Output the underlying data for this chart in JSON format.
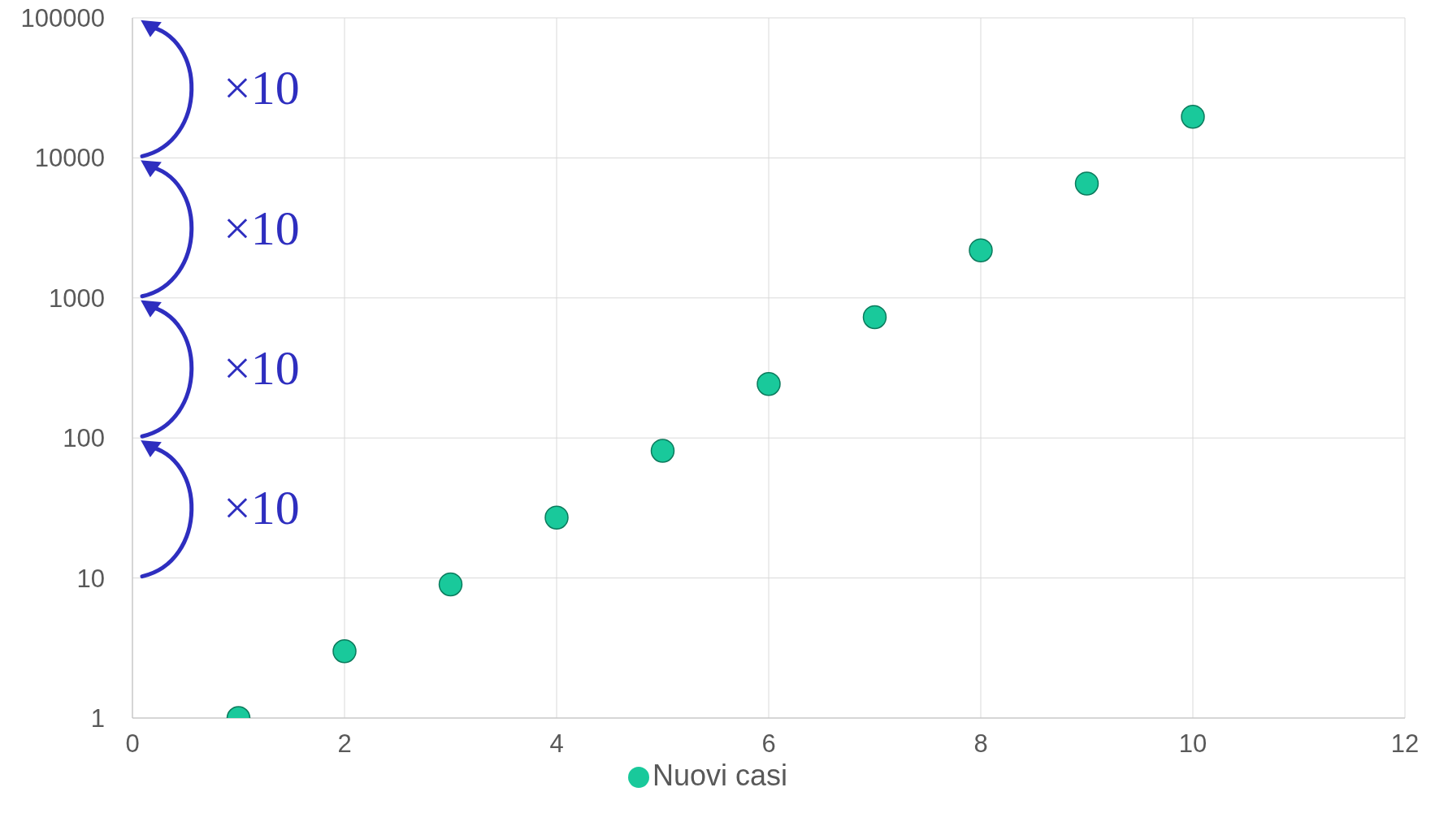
{
  "chart_data": {
    "type": "scatter",
    "x": [
      1,
      2,
      3,
      4,
      5,
      6,
      7,
      8,
      9,
      10
    ],
    "series": [
      {
        "name": "Nuovi casi",
        "color": "#19c99b",
        "values": [
          1,
          3,
          9,
          27,
          81,
          243,
          729,
          2187,
          6561,
          19683
        ]
      }
    ],
    "xlim": [
      0,
      12
    ],
    "xticks": [
      0,
      2,
      4,
      6,
      8,
      10,
      12
    ],
    "ylim": [
      1,
      100000
    ],
    "yticks": [
      1,
      10,
      100,
      1000,
      10000,
      100000
    ],
    "log": "y",
    "grid": true,
    "legend": "bottom",
    "marker": "circle",
    "annotations": [
      "×10",
      "×10",
      "×10",
      "×10"
    ]
  }
}
